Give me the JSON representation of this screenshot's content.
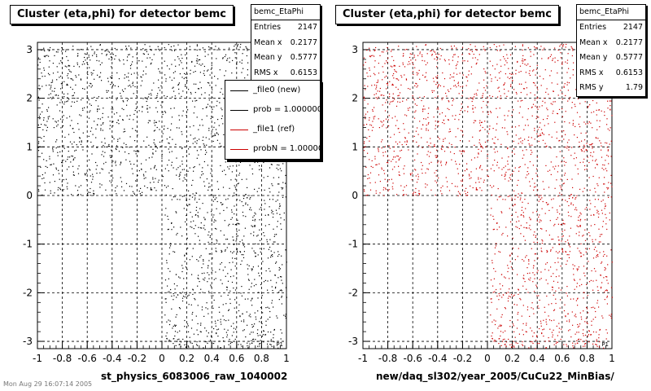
{
  "chart_data": [
    {
      "type": "scatter",
      "title": "Cluster (eta,phi) for detector bemc",
      "xlabel": "st_physics_6083006_raw_1040002",
      "xlim": [
        -1,
        1
      ],
      "ylim": [
        -3.15,
        3.15
      ],
      "x_ticks": [
        "-1",
        "-0.8",
        "-0.6",
        "-0.4",
        "-0.2",
        "0",
        "0.2",
        "0.4",
        "0.6",
        "0.8",
        "1"
      ],
      "y_ticks": [
        "-3",
        "-2",
        "-1",
        "0",
        "1",
        "2",
        "3"
      ],
      "grid": true,
      "marker_color": "#000000",
      "stats": {
        "name": "bemc_EtaPhi",
        "entries_label": "Entries",
        "entries": "2147",
        "mean_x_label": "Mean x",
        "mean_x": "0.2177",
        "mean_y_label": "Mean y",
        "mean_y": "0.5777",
        "rms_x_label": "RMS x",
        "rms_x": "0.6153"
      },
      "legend": {
        "placement": "top-right",
        "entries": [
          {
            "label": "_file0 (new)",
            "color": "#000000"
          },
          {
            "label": "prob = 1.000000",
            "color": "#000000"
          },
          {
            "label": "_file1 (ref)",
            "color": "#cc0000"
          },
          {
            "label": "probN = 1.000000",
            "color": "#cc0000"
          }
        ]
      },
      "corner_label": "P1"
    },
    {
      "type": "scatter",
      "title": "Cluster (eta,phi) for detector bemc",
      "xlabel": "new/daq_sl302/year_2005/CuCu22_MinBias/",
      "xlim": [
        -1,
        1
      ],
      "ylim": [
        -3.15,
        3.15
      ],
      "x_ticks": [
        "-1",
        "-0.8",
        "-0.6",
        "-0.4",
        "-0.2",
        "0",
        "0.2",
        "0.4",
        "0.6",
        "0.8",
        "1"
      ],
      "y_ticks": [
        "-3",
        "-2",
        "-1",
        "0",
        "1",
        "2",
        "3"
      ],
      "grid": true,
      "marker_color": "#cc0000",
      "stats": {
        "name": "bemc_EtaPhi",
        "entries_label": "Entries",
        "entries": "2147",
        "mean_x_label": "Mean x",
        "mean_x": "0.2177",
        "mean_y_label": "Mean y",
        "mean_y": "0.5777",
        "rms_x_label": "RMS x",
        "rms_x": "0.6153",
        "rms_y_label": "RMS y",
        "rms_y": "1.79"
      },
      "corner_label": "P1"
    }
  ],
  "footer": "Mon Aug 29 16:07:14 2005"
}
